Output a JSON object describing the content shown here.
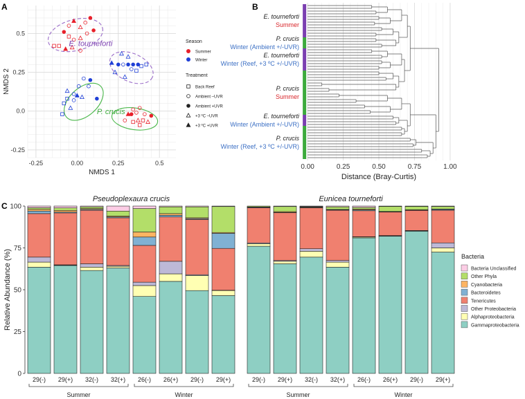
{
  "colors": {
    "summer": "#e8202a",
    "winter": "#1f3fd6",
    "purple": "#7b3fb0",
    "green": "#3caa3c",
    "ellipse_purple": "#9a6cc8",
    "ellipse_green": "#4cb84c",
    "label_red": "#d9262b",
    "label_blue": "#3b6fc4"
  },
  "panels": {
    "a": "A",
    "b": "B",
    "c": "C"
  },
  "chart_data": [
    {
      "type": "scatter",
      "panel": "A",
      "title": "",
      "xlabel": "NMDS 1",
      "ylabel": "NMDS 2",
      "xlim": [
        -0.3,
        0.6
      ],
      "ylim": [
        -0.3,
        0.68
      ],
      "xticks": [
        -0.25,
        0.0,
        0.25,
        0.5
      ],
      "xtick_labels": [
        "-0.25",
        "0.00",
        "0.25",
        "0.5"
      ],
      "yticks": [
        -0.25,
        0.0,
        0.25,
        0.5
      ],
      "ytick_labels": [
        "-0.25",
        "0.0",
        "0.25",
        "0.5"
      ],
      "grid": true,
      "cluster_labels": [
        {
          "text": "E. tourneforti",
          "x": -0.05,
          "y": 0.42,
          "color": "purple"
        },
        {
          "text": "P. crucis",
          "x": 0.12,
          "y": -0.02,
          "color": "green"
        }
      ],
      "ellipses": [
        {
          "cx": -0.01,
          "cy": 0.49,
          "rx": 0.17,
          "ry": 0.1,
          "angle": 15,
          "color": "ellipse_purple",
          "dashed": true
        },
        {
          "cx": 0.33,
          "cy": 0.28,
          "rx": 0.14,
          "ry": 0.09,
          "angle": -25,
          "color": "ellipse_purple",
          "dashed": true
        },
        {
          "cx": 0.04,
          "cy": 0.06,
          "rx": 0.14,
          "ry": 0.09,
          "angle": 42,
          "color": "ellipse_green",
          "dashed": false
        },
        {
          "cx": 0.35,
          "cy": -0.05,
          "rx": 0.14,
          "ry": 0.07,
          "angle": -8,
          "color": "ellipse_green",
          "dashed": false
        }
      ],
      "points": [
        {
          "x": -0.08,
          "y": 0.51,
          "season": "Summer",
          "shape": "circle",
          "filled": true
        },
        {
          "x": -0.05,
          "y": 0.55,
          "season": "Summer",
          "shape": "circle",
          "filled": false
        },
        {
          "x": -0.02,
          "y": 0.58,
          "season": "Summer",
          "shape": "triangle",
          "filled": true
        },
        {
          "x": 0.02,
          "y": 0.54,
          "season": "Summer",
          "shape": "triangle",
          "filled": false
        },
        {
          "x": 0.05,
          "y": 0.57,
          "season": "Summer",
          "shape": "circle",
          "filled": false
        },
        {
          "x": 0.08,
          "y": 0.6,
          "season": "Summer",
          "shape": "circle",
          "filled": true
        },
        {
          "x": 0.1,
          "y": 0.52,
          "season": "Summer",
          "shape": "circle",
          "filled": true
        },
        {
          "x": -0.05,
          "y": 0.48,
          "season": "Summer",
          "shape": "square",
          "filled": false
        },
        {
          "x": -0.02,
          "y": 0.46,
          "season": "Summer",
          "shape": "circle",
          "filled": false
        },
        {
          "x": 0.02,
          "y": 0.47,
          "season": "Summer",
          "shape": "triangle",
          "filled": false
        },
        {
          "x": 0.06,
          "y": 0.5,
          "season": "Summer",
          "shape": "circle",
          "filled": false
        },
        {
          "x": -0.14,
          "y": 0.42,
          "season": "Summer",
          "shape": "square",
          "filled": false
        },
        {
          "x": -0.11,
          "y": 0.42,
          "season": "Summer",
          "shape": "square",
          "filled": false
        },
        {
          "x": -0.07,
          "y": 0.4,
          "season": "Summer",
          "shape": "triangle",
          "filled": true
        },
        {
          "x": -0.03,
          "y": 0.41,
          "season": "Summer",
          "shape": "triangle",
          "filled": false
        },
        {
          "x": 0.02,
          "y": 0.39,
          "season": "Summer",
          "shape": "circle",
          "filled": false
        },
        {
          "x": 0.27,
          "y": 0.37,
          "season": "Winter",
          "shape": "triangle",
          "filled": false
        },
        {
          "x": 0.31,
          "y": 0.35,
          "season": "Winter",
          "shape": "triangle",
          "filled": false
        },
        {
          "x": 0.21,
          "y": 0.31,
          "season": "Winter",
          "shape": "triangle",
          "filled": true
        },
        {
          "x": 0.25,
          "y": 0.3,
          "season": "Winter",
          "shape": "circle",
          "filled": true
        },
        {
          "x": 0.28,
          "y": 0.3,
          "season": "Winter",
          "shape": "circle",
          "filled": false
        },
        {
          "x": 0.31,
          "y": 0.3,
          "season": "Winter",
          "shape": "circle",
          "filled": true
        },
        {
          "x": 0.34,
          "y": 0.3,
          "season": "Winter",
          "shape": "circle",
          "filled": true
        },
        {
          "x": 0.37,
          "y": 0.3,
          "season": "Winter",
          "shape": "circle",
          "filled": true
        },
        {
          "x": 0.39,
          "y": 0.29,
          "season": "Winter",
          "shape": "square",
          "filled": false
        },
        {
          "x": 0.42,
          "y": 0.3,
          "season": "Winter",
          "shape": "square",
          "filled": false
        },
        {
          "x": 0.33,
          "y": 0.27,
          "season": "Winter",
          "shape": "circle",
          "filled": false
        },
        {
          "x": 0.23,
          "y": 0.25,
          "season": "Winter",
          "shape": "triangle",
          "filled": false
        },
        {
          "x": 0.36,
          "y": 0.26,
          "season": "Winter",
          "shape": "square",
          "filled": false
        },
        {
          "x": 0.29,
          "y": 0.22,
          "season": "Winter",
          "shape": "triangle",
          "filled": false
        },
        {
          "x": 0.04,
          "y": 0.21,
          "season": "Winter",
          "shape": "circle",
          "filled": false
        },
        {
          "x": 0.08,
          "y": 0.2,
          "season": "Winter",
          "shape": "circle",
          "filled": true
        },
        {
          "x": 0.01,
          "y": 0.16,
          "season": "Winter",
          "shape": "circle",
          "filled": false
        },
        {
          "x": 0.07,
          "y": 0.16,
          "season": "Winter",
          "shape": "circle",
          "filled": false
        },
        {
          "x": -0.06,
          "y": 0.13,
          "season": "Winter",
          "shape": "triangle",
          "filled": false
        },
        {
          "x": -0.02,
          "y": 0.11,
          "season": "Winter",
          "shape": "circle",
          "filled": false
        },
        {
          "x": 0.0,
          "y": 0.1,
          "season": "Winter",
          "shape": "triangle",
          "filled": true
        },
        {
          "x": 0.03,
          "y": 0.09,
          "season": "Winter",
          "shape": "triangle",
          "filled": false
        },
        {
          "x": -0.06,
          "y": 0.08,
          "season": "Winter",
          "shape": "square",
          "filled": false
        },
        {
          "x": -0.02,
          "y": 0.07,
          "season": "Winter",
          "shape": "circle",
          "filled": false
        },
        {
          "x": 0.12,
          "y": 0.08,
          "season": "Winter",
          "shape": "circle",
          "filled": true
        },
        {
          "x": -0.08,
          "y": 0.05,
          "season": "Winter",
          "shape": "square",
          "filled": false
        },
        {
          "x": -0.04,
          "y": 0.02,
          "season": "Winter",
          "shape": "triangle",
          "filled": false
        },
        {
          "x": -0.09,
          "y": -0.02,
          "season": "Winter",
          "shape": "square",
          "filled": false
        },
        {
          "x": 0.34,
          "y": 0.01,
          "season": "Summer",
          "shape": "circle",
          "filled": false
        },
        {
          "x": 0.38,
          "y": 0.02,
          "season": "Summer",
          "shape": "circle",
          "filled": false
        },
        {
          "x": 0.31,
          "y": -0.02,
          "season": "Summer",
          "shape": "triangle",
          "filled": true
        },
        {
          "x": 0.33,
          "y": -0.02,
          "season": "Summer",
          "shape": "circle",
          "filled": true
        },
        {
          "x": 0.36,
          "y": -0.01,
          "season": "Summer",
          "shape": "circle",
          "filled": false
        },
        {
          "x": 0.41,
          "y": -0.02,
          "season": "Summer",
          "shape": "circle",
          "filled": false
        },
        {
          "x": 0.45,
          "y": -0.03,
          "season": "Summer",
          "shape": "circle",
          "filled": true
        },
        {
          "x": 0.29,
          "y": -0.06,
          "season": "Summer",
          "shape": "circle",
          "filled": false
        },
        {
          "x": 0.34,
          "y": -0.07,
          "season": "Summer",
          "shape": "square",
          "filled": false
        },
        {
          "x": 0.37,
          "y": -0.06,
          "season": "Summer",
          "shape": "triangle",
          "filled": false
        },
        {
          "x": 0.4,
          "y": -0.06,
          "season": "Summer",
          "shape": "square",
          "filled": false
        },
        {
          "x": 0.43,
          "y": -0.07,
          "season": "Summer",
          "shape": "triangle",
          "filled": false
        },
        {
          "x": 0.38,
          "y": -0.09,
          "season": "Summer",
          "shape": "square",
          "filled": false
        }
      ],
      "legend": {
        "season_title": "Season",
        "season": [
          {
            "label": "Summer",
            "color": "summer"
          },
          {
            "label": "Winter",
            "color": "winter"
          }
        ],
        "treatment_title": "Treatment",
        "treatment": [
          {
            "label": "Back Reef",
            "shape": "square",
            "filled": false
          },
          {
            "label": "Ambient –UVR",
            "shape": "circle",
            "filled": false
          },
          {
            "label": "Ambient +UVR",
            "shape": "circle",
            "filled": true
          },
          {
            "label": "+3 ºC –UVR",
            "shape": "triangle",
            "filled": false
          },
          {
            "label": "+3 ºC +UVR",
            "shape": "triangle",
            "filled": true
          }
        ],
        "placement": "right"
      }
    },
    {
      "type": "dendrogram",
      "panel": "B",
      "title": "",
      "xlabel": "Distance (Bray-Curtis)",
      "xlim": [
        -0.02,
        1.02
      ],
      "xticks": [
        0.0,
        0.25,
        0.5,
        0.75,
        1.0
      ],
      "xtick_labels": [
        "0.00",
        "0.25",
        "0.50",
        "0.75",
        "1.00"
      ],
      "grid": true,
      "n_leaves": 56,
      "groups": [
        {
          "species": "E. tourneforti",
          "condition": "Summer",
          "condition_color": "label_red",
          "bar_color": "purple",
          "leaves": 12
        },
        {
          "species": "P. crucis",
          "condition": "Winter (Ambient +/-UVR)",
          "condition_color": "label_blue",
          "bar_color": "green",
          "leaves": 4
        },
        {
          "species": "E. tourneforti",
          "condition": "Winter (Reef, +3 ºC +/-UVR)",
          "condition_color": "label_blue",
          "bar_color": "purple",
          "leaves": 8
        },
        {
          "species": "P. crucis",
          "condition": "Summer",
          "condition_color": "label_red",
          "bar_color": "green",
          "leaves": 16
        },
        {
          "species": "E. tourneforti",
          "condition": "Winter (Ambient +/-UVR)",
          "condition_color": "label_blue",
          "bar_color": "purple",
          "leaves": 4
        },
        {
          "species": "P. crucis",
          "condition": "Winter (Reef, +3 ºC +/-UVR)",
          "condition_color": "label_blue",
          "bar_color": "green",
          "leaves": 12
        }
      ],
      "leaf_heights": [
        0.34,
        0.36,
        0.24,
        0.38,
        0.3,
        0.35,
        0.22,
        0.44,
        0.4,
        0.2,
        0.37,
        0.28,
        0.3,
        0.36,
        0.42,
        0.35,
        0.4,
        0.3,
        0.48,
        0.32,
        0.36,
        0.4,
        0.44,
        0.38,
        0.42,
        0.38,
        0.05,
        0.06,
        0.1,
        0.08,
        0.12,
        0.15,
        0.22,
        0.18,
        0.3,
        0.25,
        0.32,
        0.38,
        0.34,
        0.4,
        0.5,
        0.55,
        0.6,
        0.5,
        0.62,
        0.5,
        0.56,
        0.66,
        0.58,
        0.72,
        0.66,
        0.74,
        0.7,
        0.76,
        0.78,
        0.8
      ],
      "pair_heights": [
        0.45,
        0.48,
        0.5,
        0.47,
        0.52,
        0.48,
        0.48,
        0.52,
        0.45,
        0.52,
        0.52,
        0.5,
        0.5,
        0.55,
        0.08,
        0.14,
        0.2,
        0.34,
        0.4,
        0.44,
        0.6,
        0.62,
        0.66,
        0.64,
        0.62,
        0.72,
        0.8,
        0.84
      ],
      "upper_merges": [
        [
          0.56,
          0.58,
          0.6,
          0.62
        ],
        [
          0.66,
          0.63
        ],
        [
          0.7,
          0.66,
          0.7,
          0.63
        ],
        [
          0.67,
          0.74,
          0.82
        ],
        [
          0.78,
          0.82
        ],
        [
          0.86,
          0.9,
          0.94
        ],
        [
          0.97,
          0.99
        ]
      ]
    },
    {
      "type": "bar",
      "stacked": true,
      "panel": "C",
      "ylabel": "Relative Abundance (%)",
      "ylim": [
        0,
        100
      ],
      "yticks": [
        0,
        25,
        50,
        75,
        100
      ],
      "ytick_labels": [
        "0",
        "25",
        "50",
        "75",
        "100"
      ],
      "groups": [
        {
          "title": "Pseudoplexaura crucis",
          "seasons": [
            {
              "label": "Summer",
              "bars": [
                0,
                1,
                2,
                3
              ]
            },
            {
              "label": "Winter",
              "bars": [
                4,
                5,
                6,
                7
              ]
            }
          ]
        },
        {
          "title": "Eunicea tourneforti",
          "seasons": [
            {
              "label": "Summer",
              "bars": [
                8,
                9,
                10,
                11
              ]
            },
            {
              "label": "Winter",
              "bars": [
                12,
                13,
                14,
                15
              ]
            }
          ]
        }
      ],
      "categories": [
        "29(-)",
        "29(+)",
        "32(-)",
        "32(+)",
        "26(-)",
        "26(+)",
        "29(-)",
        "29(+)",
        "29(-)",
        "29(+)",
        "32(-)",
        "32(+)",
        "26(-)",
        "26(+)",
        "29(-)",
        "29(+)"
      ],
      "legend_title": "Bacteria",
      "legend_placement": "right",
      "series": [
        {
          "name": "Gammaproteobacteria",
          "color": "#8ecfc3",
          "values": [
            63.5,
            64.5,
            61.5,
            63.0,
            46.0,
            55.0,
            49.5,
            46.5,
            76.0,
            65.5,
            69.5,
            63.5,
            81.0,
            82.0,
            85.0,
            72.5
          ]
        },
        {
          "name": "Alphaproteobacteria",
          "color": "#ffffb3",
          "values": [
            3.0,
            0.2,
            2.0,
            1.0,
            6.5,
            4.5,
            9.0,
            3.0,
            1.5,
            1.5,
            3.5,
            3.0,
            0.5,
            0.2,
            0.2,
            2.5
          ]
        },
        {
          "name": "Other Proteobacteria",
          "color": "#bdb9d7",
          "values": [
            3.0,
            0.2,
            2.0,
            0.5,
            2.0,
            7.5,
            0.5,
            0.2,
            0.5,
            0.5,
            1.5,
            1.0,
            0.2,
            0.2,
            0.2,
            3.0
          ]
        },
        {
          "name": "Tenericutes",
          "color": "#f0806f",
          "values": [
            26.0,
            31.0,
            32.0,
            28.5,
            22.0,
            26.5,
            33.0,
            25.0,
            21.0,
            28.5,
            24.5,
            30.0,
            15.5,
            14.0,
            12.0,
            19.5
          ]
        },
        {
          "name": "Bacteroidetes",
          "color": "#80b1d3",
          "values": [
            1.5,
            0.5,
            0.5,
            0.5,
            5.0,
            1.0,
            0.5,
            9.0,
            0.3,
            0.2,
            0.2,
            0.3,
            0.5,
            0.2,
            0.2,
            0.5
          ]
        },
        {
          "name": "Cyanobacteria",
          "color": "#fdb462",
          "values": [
            1.0,
            1.0,
            0.5,
            0.5,
            3.0,
            1.0,
            0.5,
            0.5,
            0.2,
            0.5,
            0.2,
            0.2,
            0.5,
            0.2,
            0.2,
            0.2
          ]
        },
        {
          "name": "Other Phyla",
          "color": "#b3de69",
          "values": [
            1.0,
            1.5,
            1.0,
            3.0,
            14.0,
            4.0,
            6.5,
            15.5,
            0.5,
            3.0,
            0.3,
            1.5,
            1.0,
            3.0,
            2.0,
            1.5
          ]
        },
        {
          "name": "Bacteria Unclassified",
          "color": "#fccde5",
          "values": [
            1.0,
            1.1,
            0.5,
            3.0,
            1.5,
            0.5,
            0.5,
            0.3,
            0.0,
            0.3,
            0.3,
            0.5,
            0.8,
            0.2,
            0.2,
            0.3
          ]
        }
      ]
    }
  ]
}
